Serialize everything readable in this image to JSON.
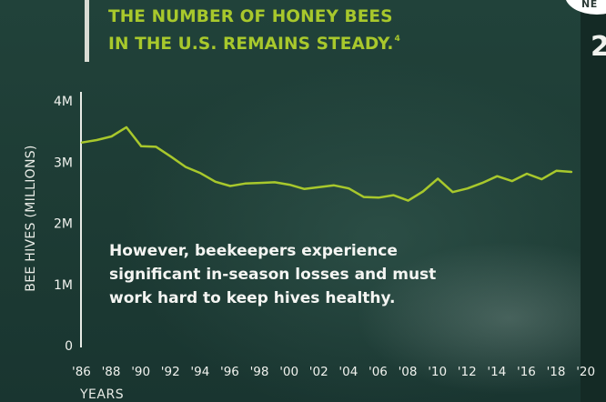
{
  "headline": {
    "line1": "THE NUMBER OF HONEY BEES",
    "line2": "IN THE U.S. REMAINS STEADY.",
    "footnote": "4"
  },
  "corner_badge": {
    "text": "NE"
  },
  "corner_char": "2",
  "callout": "However, beekeepers experience significant in-season losses and must work hard to keep hives healthy.",
  "colors": {
    "line": "#a8c82c",
    "headline": "#a8c82c",
    "text": "#f0f2ee",
    "axis": "#e8ebe6"
  },
  "chart_data": {
    "type": "line",
    "xlabel": "YEARS",
    "ylabel": "BEE HIVES (MILLIONS)",
    "ylim": [
      0,
      4
    ],
    "yticks": [
      0,
      1,
      2,
      3,
      4
    ],
    "ytick_labels": [
      "0",
      "1M",
      "2M",
      "3M",
      "4M"
    ],
    "xlim": [
      1986,
      2019
    ],
    "xticks": [
      1986,
      1988,
      1990,
      1992,
      1994,
      1996,
      1998,
      2000,
      2002,
      2004,
      2006,
      2008,
      2010,
      2012,
      2014,
      2016,
      2018,
      2020
    ],
    "xtick_labels": [
      "'86",
      "'88",
      "'90",
      "'92",
      "'94",
      "'96",
      "'98",
      "'00",
      "'02",
      "'04",
      "'06",
      "'08",
      "'10",
      "'12",
      "'14",
      "'16",
      "'18",
      "'20"
    ],
    "grid": false,
    "x": [
      1986,
      1987,
      1988,
      1989,
      1990,
      1991,
      1992,
      1993,
      1994,
      1995,
      1996,
      1997,
      1998,
      1999,
      2000,
      2001,
      2002,
      2003,
      2004,
      2005,
      2006,
      2007,
      2008,
      2009,
      2010,
      2011,
      2012,
      2013,
      2014,
      2015,
      2016,
      2017,
      2018,
      2019
    ],
    "y": [
      3.32,
      3.36,
      3.42,
      3.57,
      3.26,
      3.25,
      3.09,
      2.92,
      2.82,
      2.68,
      2.61,
      2.65,
      2.66,
      2.67,
      2.63,
      2.56,
      2.59,
      2.62,
      2.57,
      2.43,
      2.42,
      2.46,
      2.37,
      2.52,
      2.73,
      2.51,
      2.57,
      2.66,
      2.77,
      2.69,
      2.81,
      2.72,
      2.86,
      2.84
    ]
  }
}
